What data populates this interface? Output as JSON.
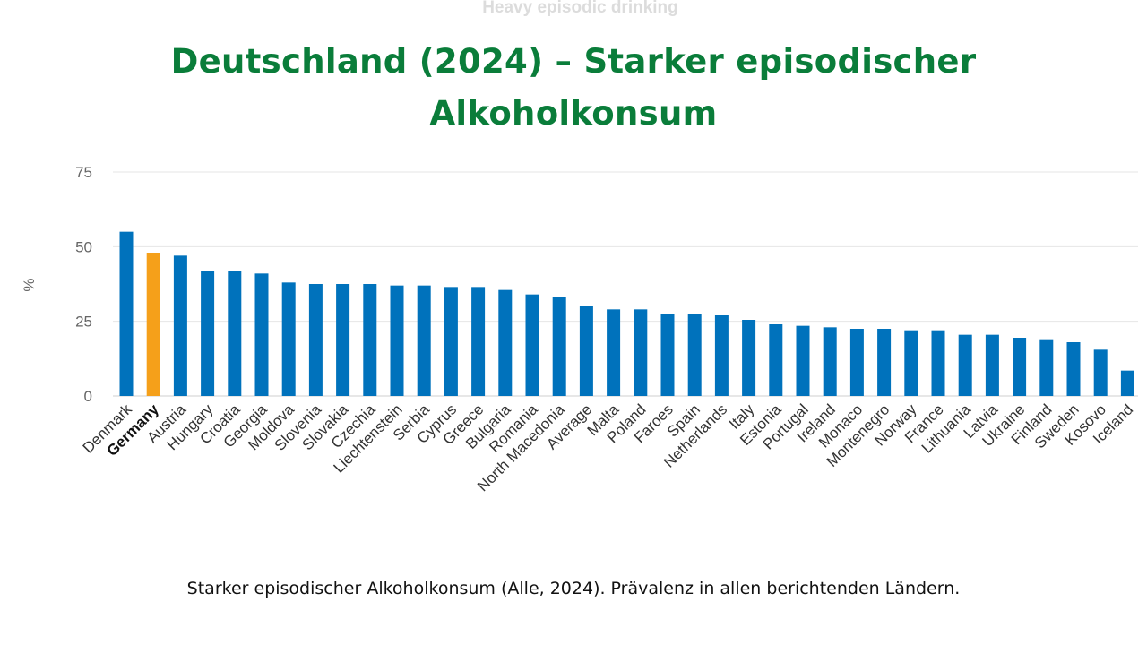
{
  "header": {
    "ghost_title": "Heavy episodic drinking",
    "title": "Deutschland (2024) – Starker episodischer Alkoholkonsum"
  },
  "caption": "Starker episodischer Alkoholkonsum (Alle, 2024). Prävalenz in allen berichtenden Ländern.",
  "colors": {
    "bar": "#0072bc",
    "highlight": "#f5a01a",
    "title": "#0a7d3a",
    "grid": "#e6e6e6"
  },
  "chart_data": {
    "type": "bar",
    "ylabel": "%",
    "ylim": [
      0,
      75
    ],
    "yticks": [
      0,
      25,
      50,
      75
    ],
    "grid": true,
    "highlight": "Germany",
    "categories": [
      "Denmark",
      "Germany",
      "Austria",
      "Hungary",
      "Croatia",
      "Georgia",
      "Moldova",
      "Slovenia",
      "Slovakia",
      "Czechia",
      "Liechtenstein",
      "Serbia",
      "Cyprus",
      "Greece",
      "Bulgaria",
      "Romania",
      "North Macedonia",
      "Average",
      "Malta",
      "Poland",
      "Faroes",
      "Spain",
      "Netherlands",
      "Italy",
      "Estonia",
      "Portugal",
      "Ireland",
      "Monaco",
      "Montenegro",
      "Norway",
      "France",
      "Lithuania",
      "Latvia",
      "Ukraine",
      "Finland",
      "Sweden",
      "Kosovo",
      "Iceland"
    ],
    "values": [
      55,
      48,
      47,
      42,
      42,
      41,
      38,
      37.5,
      37.5,
      37.5,
      37,
      37,
      36.5,
      36.5,
      35.5,
      34,
      33,
      30,
      29,
      29,
      27.5,
      27.5,
      27,
      25.5,
      24,
      23.5,
      23,
      22.5,
      22.5,
      22,
      22,
      20.5,
      20.5,
      19.5,
      19,
      18,
      15.5,
      8.5
    ]
  }
}
